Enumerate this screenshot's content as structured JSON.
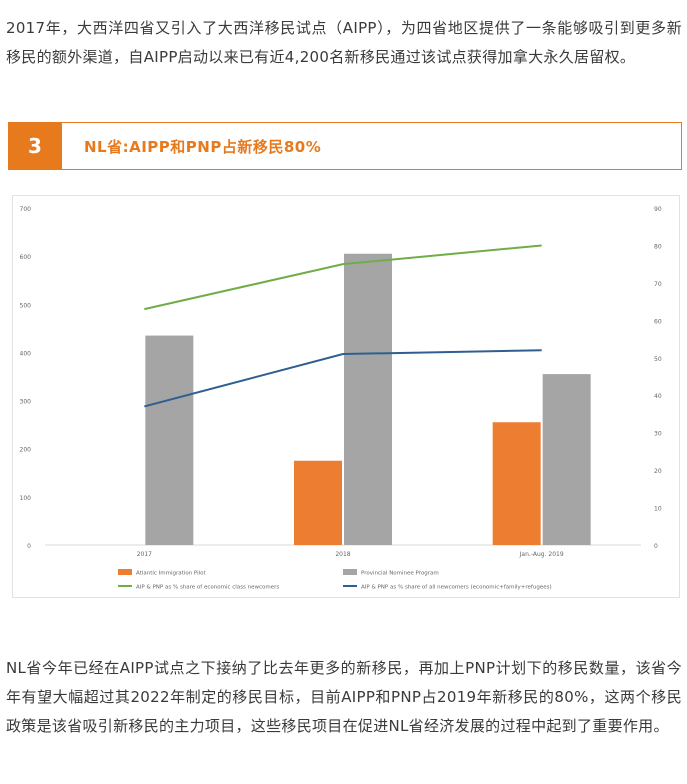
{
  "intro_text": "2017年，大西洋四省又引入了大西洋移民试点（AIPP），为四省地区提供了一条能够吸引到更多新移民的额外渠道，自AIPP启动以来已有近4,200名新移民通过该试点获得加拿大永久居留权。",
  "section": {
    "number": "3",
    "title": "NL省:AIPP和PNP占新移民80%"
  },
  "chart_data": {
    "type": "bar",
    "categories": [
      "2017",
      "2018",
      "Jan.-Aug. 2019"
    ],
    "y_left": {
      "ylim": [
        0,
        700
      ],
      "ticks": [
        "0",
        "100",
        "200",
        "300",
        "400",
        "500",
        "600",
        "700"
      ]
    },
    "y_right": {
      "ylim": [
        0,
        90
      ],
      "ticks": [
        "0",
        "10",
        "20",
        "30",
        "40",
        "50",
        "60",
        "70",
        "80",
        "90"
      ]
    },
    "bar_series": [
      {
        "name": "Atlantic Immigration Pilot",
        "color": "#ed7d31",
        "values": [
          0,
          175,
          255
        ]
      },
      {
        "name": "Provincial Nominee Program",
        "color": "#a5a5a5",
        "values": [
          435,
          605,
          355
        ]
      }
    ],
    "line_series": [
      {
        "name": "AIP & PNP as % share of economic class newcomers",
        "color": "#70ad47",
        "axis": "right",
        "values": [
          63,
          75,
          80
        ]
      },
      {
        "name": "AIP & PNP as % share of all newcomers (economic+family+refugees)",
        "color": "#2e5f8f",
        "axis": "right",
        "values": [
          37,
          51,
          52
        ]
      }
    ],
    "grid": false,
    "legend": "bottom"
  },
  "body_text": "NL省今年已经在AIPP试点之下接纳了比去年更多的新移民，再加上PNP计划下的移民数量，该省今年有望大幅超过其2022年制定的移民目标，目前AIPP和PNP占2019年新移民的80%，这两个移民政策是该省吸引新移民的主力项目，这些移民项目在促进NL省经济发展的过程中起到了重要作用。"
}
